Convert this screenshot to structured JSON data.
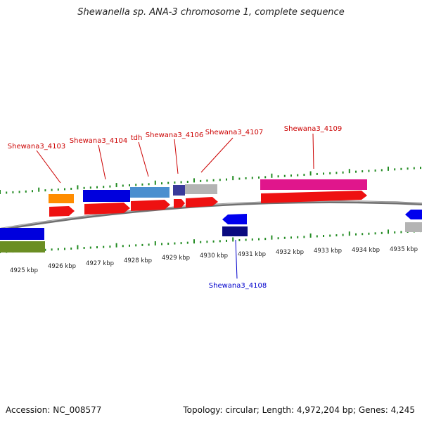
{
  "title": "Shewanella sp. ANA-3 chromosome 1, complete sequence",
  "footer": {
    "accession": "Accession: NC_008577",
    "summary": "Topology: circular; Length: 4,972,204 bp; Genes: 4,245"
  },
  "colors": {
    "forward_label": "#cc0000",
    "reverse_label": "#0000cc",
    "tick": "#228b22",
    "backbone": "#808080"
  },
  "position_labels": [
    "4925 kbp",
    "4926 kbp",
    "4927 kbp",
    "4928 kbp",
    "4929 kbp",
    "4930 kbp",
    "4931 kbp",
    "4932 kbp",
    "4933 kbp",
    "4934 kbp",
    "4935 kbp"
  ],
  "gene_labels": [
    {
      "text": "Shewana3_4103",
      "strand": "forward"
    },
    {
      "text": "Shewana3_4104",
      "strand": "forward"
    },
    {
      "text": "tdh",
      "strand": "forward"
    },
    {
      "text": "Shewana3_4106",
      "strand": "forward"
    },
    {
      "text": "Shewana3_4107",
      "strand": "forward"
    },
    {
      "text": "Shewana3_4109",
      "strand": "forward"
    },
    {
      "text": "Shewana3_4108",
      "strand": "reverse"
    }
  ]
}
